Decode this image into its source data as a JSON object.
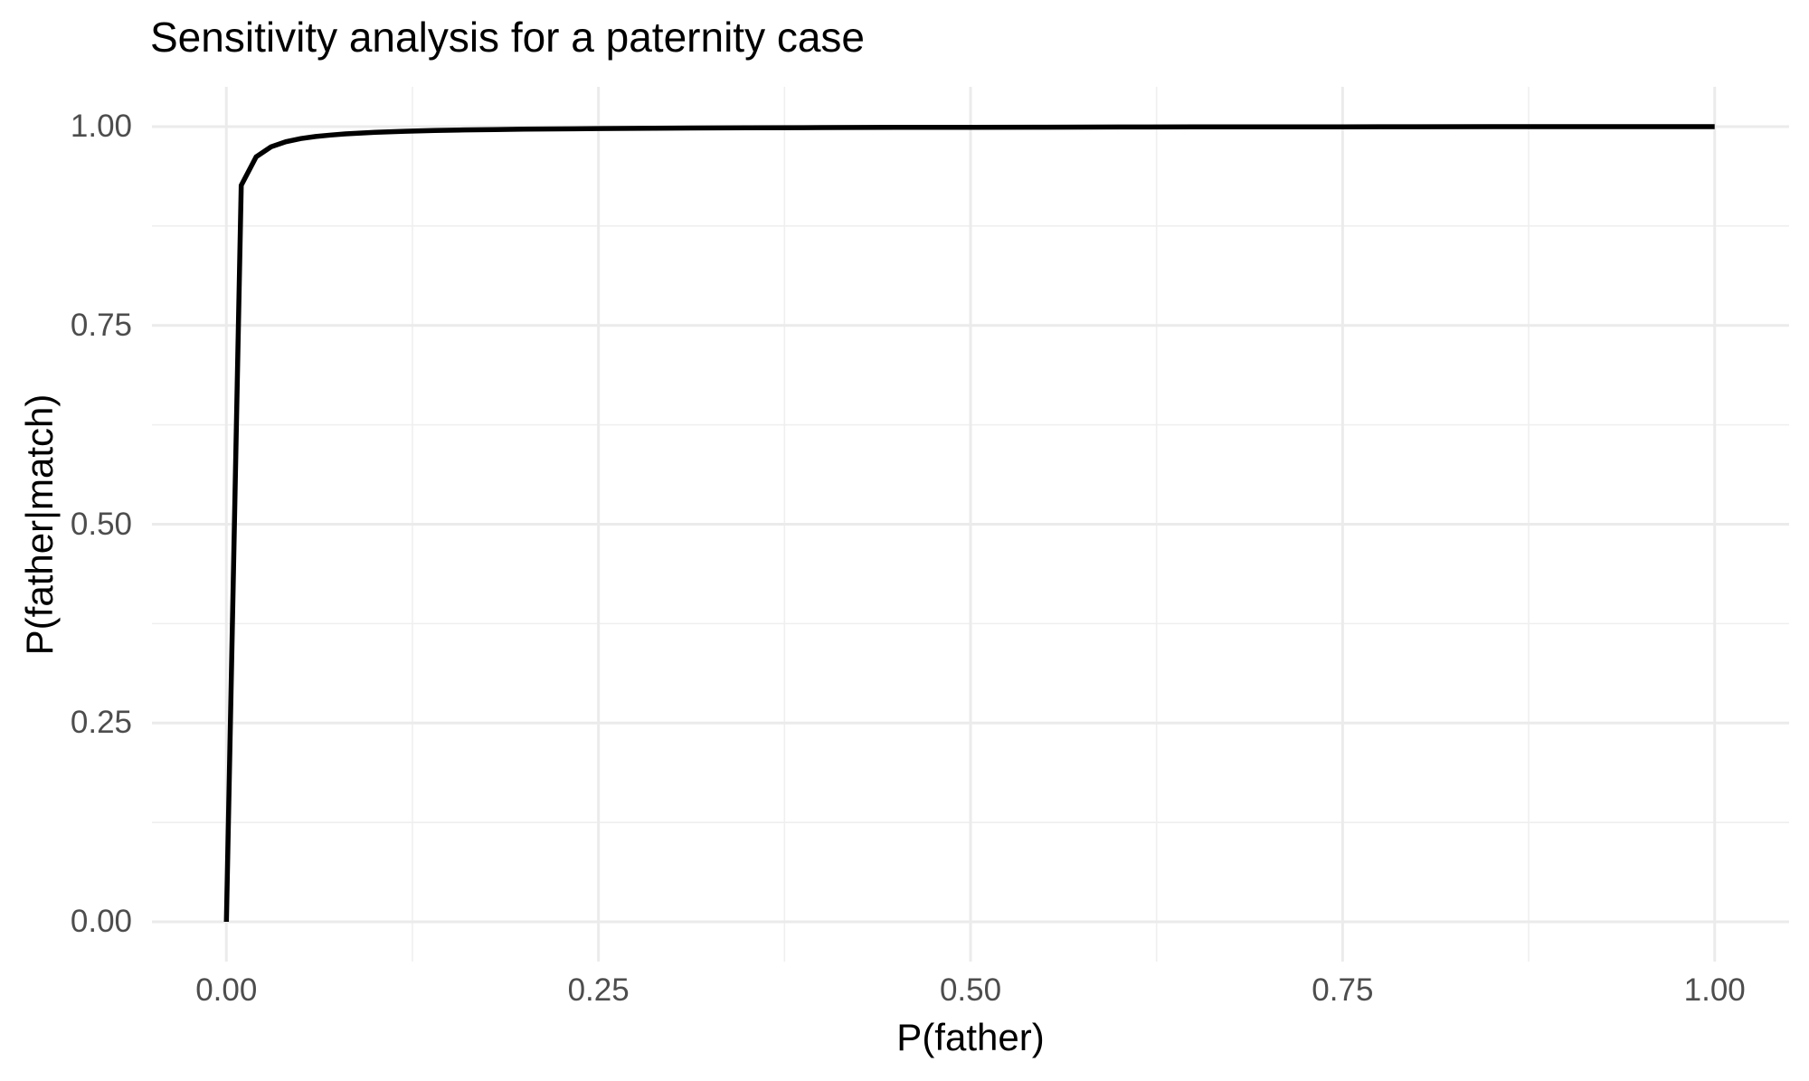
{
  "chart_data": {
    "type": "line",
    "title": "Sensitivity analysis for a paternity case",
    "xlabel": "P(father)",
    "ylabel": "P(father|match)",
    "xlim": [
      0,
      1
    ],
    "ylim": [
      0,
      1
    ],
    "axis_expansion": 0.05,
    "grid": true,
    "legend_position": "none",
    "x_ticks": [
      0,
      0.25,
      0.5,
      0.75,
      1
    ],
    "x_tick_labels": [
      "0.00",
      "0.25",
      "0.50",
      "0.75",
      "1.00"
    ],
    "y_ticks": [
      0,
      0.25,
      0.5,
      0.75,
      1
    ],
    "y_tick_labels": [
      "0.00",
      "0.25",
      "0.50",
      "0.75",
      "1.00"
    ],
    "x_minor_ticks": [
      0.125,
      0.375,
      0.625,
      0.875
    ],
    "y_minor_ticks": [
      0.125,
      0.375,
      0.625,
      0.875
    ],
    "colors": {
      "background": "#FFFFFF",
      "major_grid": "#EBEBEB",
      "minor_grid": "#EFEFEF",
      "line": "#000000",
      "tick_label": "#4D4D4D",
      "title": "#000000",
      "axis_title": "#000000"
    },
    "series": [
      {
        "name": "P(father|match) vs P(father)",
        "x": [
          0,
          0.01,
          0.02,
          0.03,
          0.04,
          0.05,
          0.06,
          0.07,
          0.08,
          0.09,
          0.1,
          0.12,
          0.14,
          0.16,
          0.18,
          0.2,
          0.25,
          0.3,
          0.35,
          0.4,
          0.45,
          0.5,
          0.55,
          0.6,
          0.65,
          0.7,
          0.75,
          0.8,
          0.85,
          0.9,
          0.95,
          1.0
        ],
        "y": [
          0,
          0.9261,
          0.962,
          0.9746,
          0.981,
          0.9849,
          0.9875,
          0.9894,
          0.9908,
          0.9919,
          0.9928,
          0.9942,
          0.9951,
          0.9958,
          0.9963,
          0.9968,
          0.9976,
          0.9981,
          0.9985,
          0.9988,
          0.999,
          0.9992,
          0.9993,
          0.9995,
          0.9996,
          0.9997,
          0.9997,
          0.9998,
          0.9999,
          0.9999,
          1.0,
          1.0
        ]
      }
    ]
  }
}
